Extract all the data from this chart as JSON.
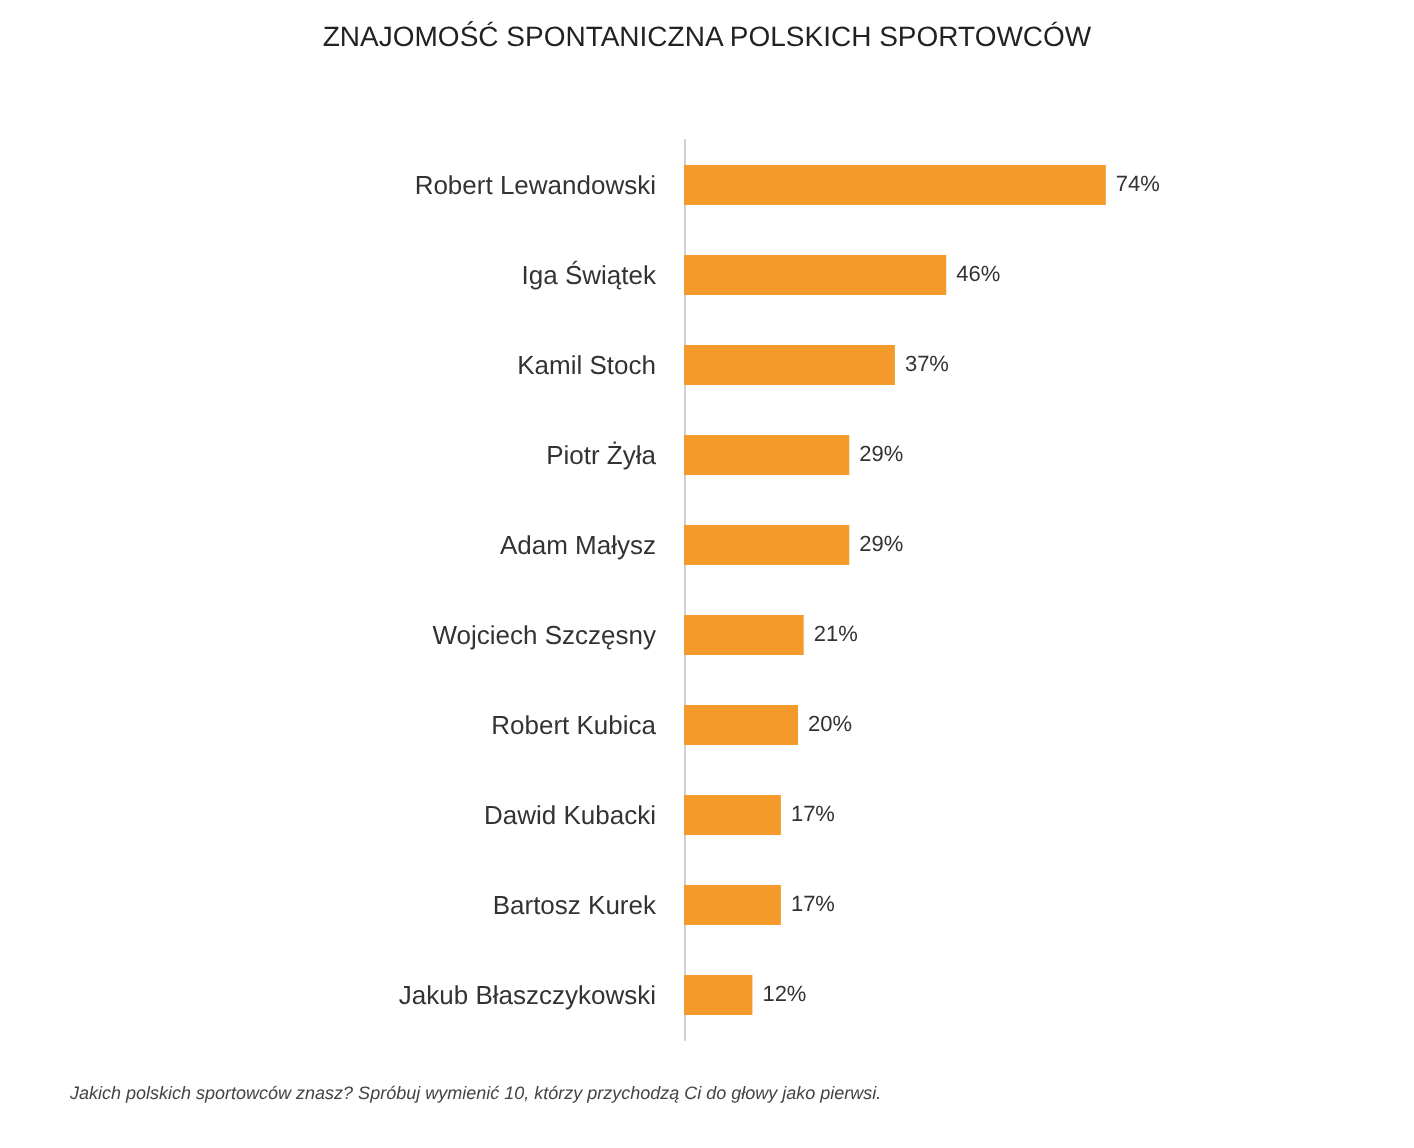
{
  "chart_data": {
    "type": "bar",
    "orientation": "horizontal",
    "title": "ZNAJOMOŚĆ SPONTANICZNA POLSKICH SPORTOWCÓW",
    "categories": [
      "Robert Lewandowski",
      "Iga Świątek",
      "Kamil Stoch",
      "Piotr Żyła",
      "Adam Małysz",
      "Wojciech Szczęsny",
      "Robert Kubica",
      "Dawid Kubacki",
      "Bartosz Kurek",
      "Jakub Błaszczykowski"
    ],
    "values": [
      74,
      46,
      37,
      29,
      29,
      21,
      20,
      17,
      17,
      12
    ],
    "value_labels": [
      "74%",
      "46%",
      "37%",
      "29%",
      "29%",
      "21%",
      "20%",
      "17%",
      "17%",
      "12%"
    ],
    "color": "#f39a2b",
    "tick_labels": "y",
    "annotations": [
      "Jakich polskich sportowców znasz? Spróbuj wymienić 10, którzy przychodzą Ci do głowy jako pierwsi."
    ]
  }
}
